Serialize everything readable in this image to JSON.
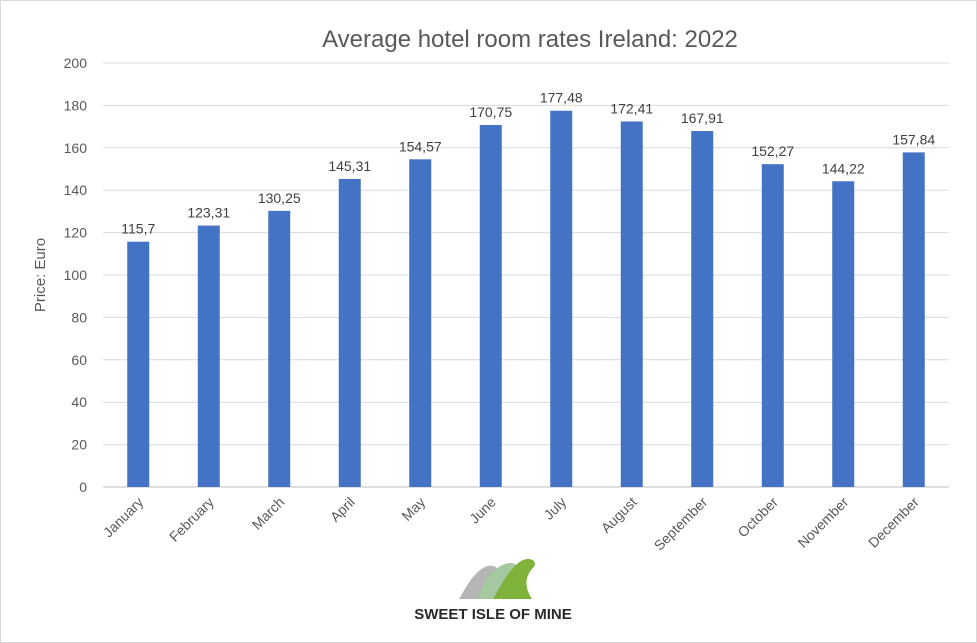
{
  "chart_data": {
    "type": "bar",
    "title": "Average hotel room rates Ireland: 2022",
    "ylabel": "Price: Euro",
    "xlabel": "",
    "ylim": [
      0,
      200
    ],
    "yticks": [
      0,
      20,
      40,
      60,
      80,
      100,
      120,
      140,
      160,
      180,
      200
    ],
    "grid": true,
    "legend": "none",
    "bar_color": "#4472c4",
    "categories": [
      "January",
      "February",
      "March",
      "April",
      "May",
      "June",
      "July",
      "August",
      "September",
      "October",
      "November",
      "December"
    ],
    "values": [
      115.7,
      123.31,
      130.25,
      145.31,
      154.57,
      170.75,
      177.48,
      172.41,
      167.91,
      152.27,
      144.22,
      157.84
    ],
    "value_labels": [
      "115,7",
      "123,31",
      "130,25",
      "145,31",
      "154,57",
      "170,75",
      "177,48",
      "172,41",
      "167,91",
      "152,27",
      "144,22",
      "157,84"
    ]
  },
  "watermark": {
    "text": "SWEET ISLE OF MINE",
    "icon": "wave-icon",
    "colors": [
      "#7fb23a",
      "#a6c8a0",
      "#b5b5b5"
    ]
  }
}
